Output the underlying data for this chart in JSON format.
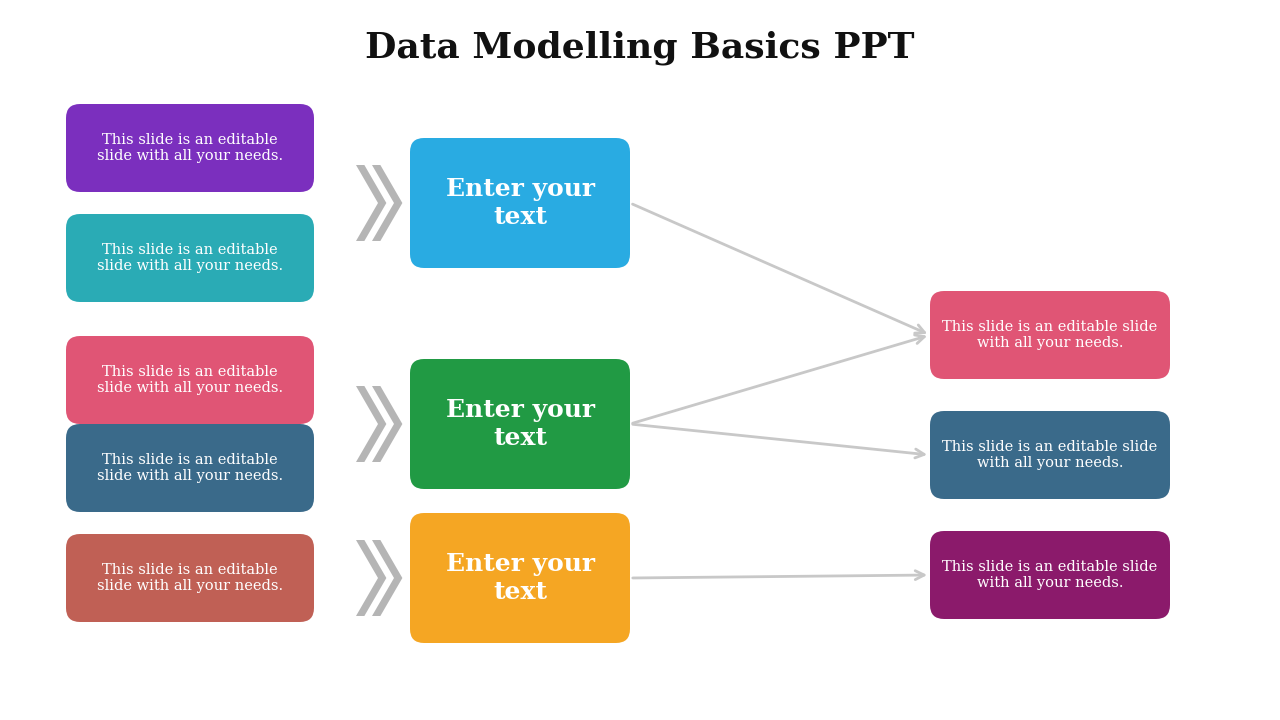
{
  "title": "Data Modelling Basics PPT",
  "title_fontsize": 26,
  "background_color": "#ffffff",
  "left_boxes": [
    {
      "color": "#7B2FBE"
    },
    {
      "color": "#2AABB5"
    },
    {
      "color": "#E05575"
    },
    {
      "color": "#3A6A8A"
    },
    {
      "color": "#C06055"
    }
  ],
  "center_boxes": [
    {
      "color": "#29ABE2"
    },
    {
      "color": "#219A44"
    },
    {
      "color": "#F5A623"
    }
  ],
  "right_boxes": [
    {
      "color": "#E05575"
    },
    {
      "color": "#3A6A8A"
    },
    {
      "color": "#8B1A6B"
    }
  ],
  "left_text": "This slide is an editable\nslide with all your needs.",
  "center_text": "Enter your\ntext",
  "right_text": "This slide is an editable slide\nwith all your needs.",
  "arrow_color": "#c8c8c8",
  "chevron_color": "#b5b5b5"
}
